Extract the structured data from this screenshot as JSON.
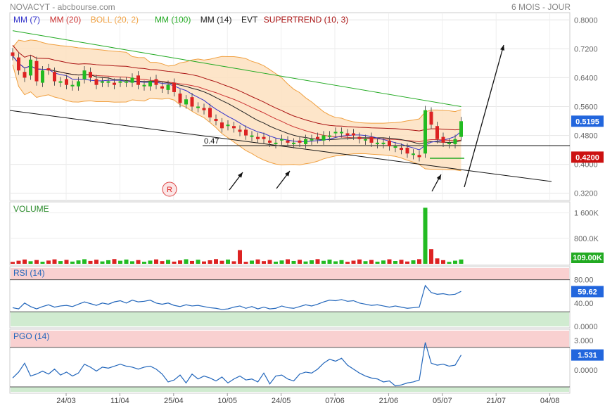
{
  "header": {
    "title": "NOVACYT - abcbourse.com",
    "period": "6 MOIS - JOUR"
  },
  "legend": [
    {
      "label": "MM (7)",
      "color": "#3333cc"
    },
    {
      "label": "MM (20)",
      "color": "#cc3333"
    },
    {
      "label": "BOLL (20, 2)",
      "color": "#f0a040"
    },
    {
      "label": "MM (100)",
      "color": "#22aa22"
    },
    {
      "label": "MM (14)",
      "color": "#222222"
    },
    {
      "label": "EVT",
      "color": "#222222"
    },
    {
      "label": "SUPERTREND (10, 3)",
      "color": "#aa1111"
    }
  ],
  "colors": {
    "up": "#22bb22",
    "down": "#dd2222",
    "band_fill": "#fde0c0",
    "band_line": "#f0a040",
    "rsi_line": "#2266bb",
    "overbought": "#f9d0d0",
    "oversold": "#d0ebd0"
  },
  "annotations": {
    "support_label": "0.47",
    "marker": "R"
  },
  "chart_data": [
    {
      "type": "candlestick",
      "title": "NOVACYT",
      "yticks": [
        "0.8000",
        "0.7200",
        "0.6400",
        "0.5600",
        "0.4800",
        "0.4000",
        "0.3200"
      ],
      "ylim": [
        0.32,
        0.8
      ],
      "xticks": [
        "24/03",
        "11/04",
        "25/04",
        "10/05",
        "24/05",
        "07/06",
        "21/06",
        "05/07",
        "21/07",
        "04/08"
      ],
      "last_price": "0.5195",
      "low_marker": "0.4200",
      "closes": [
        0.7,
        0.66,
        0.64,
        0.69,
        0.63,
        0.66,
        0.66,
        0.63,
        0.63,
        0.62,
        0.62,
        0.63,
        0.66,
        0.64,
        0.62,
        0.63,
        0.63,
        0.62,
        0.63,
        0.63,
        0.64,
        0.62,
        0.62,
        0.63,
        0.62,
        0.61,
        0.62,
        0.6,
        0.57,
        0.58,
        0.56,
        0.56,
        0.55,
        0.53,
        0.52,
        0.5,
        0.51,
        0.5,
        0.49,
        0.48,
        0.48,
        0.47,
        0.47,
        0.46,
        0.46,
        0.47,
        0.46,
        0.46,
        0.46,
        0.47,
        0.47,
        0.47,
        0.48,
        0.48,
        0.49,
        0.49,
        0.48,
        0.48,
        0.47,
        0.47,
        0.46,
        0.46,
        0.46,
        0.45,
        0.45,
        0.44,
        0.43,
        0.43,
        0.42,
        0.55,
        0.51,
        0.47,
        0.46,
        0.46,
        0.47,
        0.5195
      ],
      "volume": {
        "label": "VOLUME",
        "yticks": [
          "1 600K",
          "800.0K"
        ],
        "last": "109.00K"
      },
      "rsi": {
        "label": "RSI (14)",
        "yticks": [
          "80.00",
          "40.00",
          "0.0000"
        ],
        "last": "59.62",
        "values": [
          32,
          30,
          40,
          34,
          30,
          34,
          37,
          33,
          35,
          36,
          34,
          38,
          42,
          39,
          36,
          40,
          38,
          42,
          44,
          40,
          45,
          42,
          43,
          45,
          40,
          38,
          40,
          36,
          34,
          37,
          35,
          36,
          34,
          32,
          31,
          29,
          30,
          33,
          35,
          31,
          34,
          30,
          33,
          30,
          31,
          35,
          32,
          31,
          34,
          37,
          35,
          38,
          42,
          45,
          44,
          46,
          43,
          44,
          40,
          38,
          36,
          37,
          35,
          33,
          35,
          33,
          31,
          32,
          33,
          70,
          58,
          55,
          56,
          54,
          55,
          60
        ]
      },
      "pgo": {
        "label": "PGO (14)",
        "yticks": [
          "3.000",
          "0.0000"
        ],
        "last": "1.531",
        "values": [
          -0.8,
          -0.2,
          0.7,
          -0.6,
          -0.4,
          -0.1,
          -0.4,
          0.1,
          -0.5,
          -0.2,
          -0.6,
          -0.3,
          0.6,
          0.3,
          -0.1,
          0.3,
          0.2,
          0.4,
          0.6,
          0.4,
          0.3,
          0.1,
          0.3,
          0.4,
          0.1,
          -0.4,
          -1.2,
          -1.0,
          -0.5,
          -1.3,
          -0.4,
          -0.9,
          -0.6,
          -0.8,
          -1.1,
          -0.7,
          -1.3,
          -0.9,
          -0.6,
          -1.0,
          -0.9,
          -1.2,
          -0.3,
          -1.4,
          -0.6,
          -0.5,
          -0.9,
          -1.1,
          -0.4,
          -0.2,
          -0.3,
          0.1,
          0.7,
          1.1,
          0.9,
          1.2,
          0.5,
          0.1,
          -0.3,
          -0.6,
          -0.8,
          -0.9,
          -1.2,
          -1.1,
          -1.6,
          -1.5,
          -1.3,
          -1.2,
          -1.0,
          2.8,
          0.7,
          0.5,
          0.6,
          0.4,
          0.5,
          1.531
        ]
      }
    }
  ]
}
